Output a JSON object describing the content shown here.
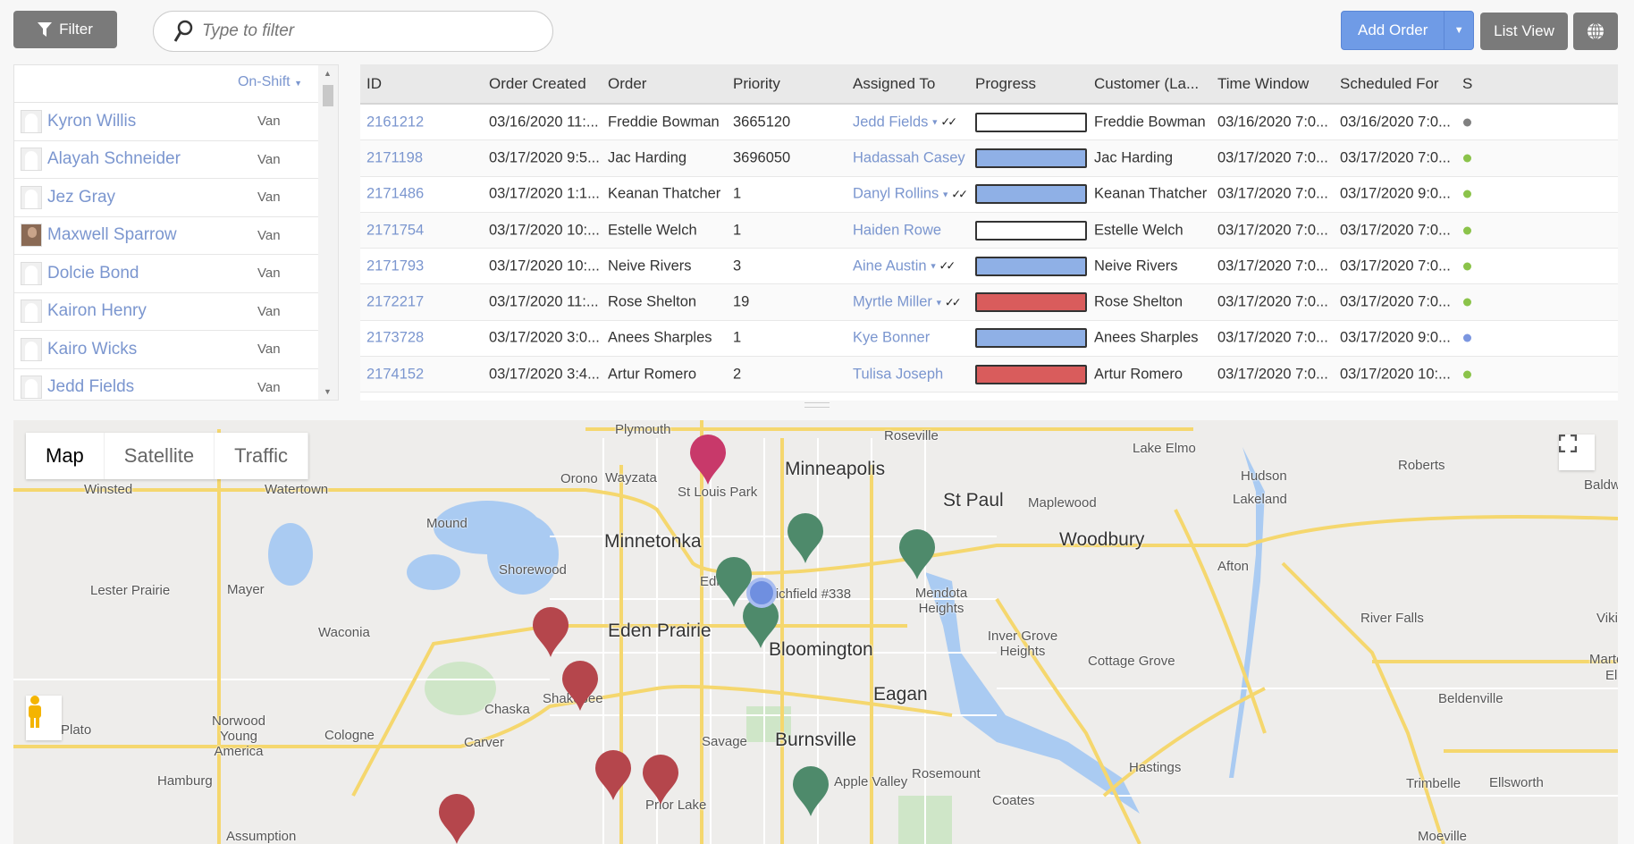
{
  "toolbar": {
    "filter_label": "Filter",
    "search_placeholder": "Type to filter",
    "add_order_label": "Add Order",
    "list_view_label": "List View"
  },
  "drivers": {
    "sort_label": "On-Shift",
    "items": [
      {
        "name": "Kyron Willis",
        "vehicle": "Van",
        "photo": false
      },
      {
        "name": "Alayah Schneider",
        "vehicle": "Van",
        "photo": false
      },
      {
        "name": "Jez Gray",
        "vehicle": "Van",
        "photo": false
      },
      {
        "name": "Maxwell Sparrow",
        "vehicle": "Van",
        "photo": true
      },
      {
        "name": "Dolcie Bond",
        "vehicle": "Van",
        "photo": false
      },
      {
        "name": "Kairon Henry",
        "vehicle": "Van",
        "photo": false
      },
      {
        "name": "Kairo Wicks",
        "vehicle": "Van",
        "photo": false
      },
      {
        "name": "Jedd Fields",
        "vehicle": "Van",
        "photo": false
      }
    ]
  },
  "orders": {
    "columns": [
      "ID",
      "Order Created",
      "Order",
      "Priority",
      "Assigned To",
      "Progress",
      "Customer (La...",
      "Time Window",
      "Scheduled For",
      "S"
    ],
    "rows": [
      {
        "id": "2161212",
        "created": "03/16/2020 11:...",
        "order": "Freddie Bowman",
        "priority": "3665120",
        "assigned": "Jedd Fields",
        "confirmed": true,
        "progress": "none",
        "customer": "Freddie Bowman",
        "window": "03/16/2020 7:0...",
        "scheduled": "03/16/2020 7:0...",
        "status": "gray"
      },
      {
        "id": "2171198",
        "created": "03/17/2020 9:5...",
        "order": "Jac Harding",
        "priority": "3696050",
        "assigned": "Hadassah Casey",
        "confirmed": false,
        "progress": "blue",
        "customer": "Jac Harding",
        "window": "03/17/2020 7:0...",
        "scheduled": "03/17/2020 7:0...",
        "status": "green"
      },
      {
        "id": "2171486",
        "created": "03/17/2020 1:1...",
        "order": "Keanan Thatcher",
        "priority": "1",
        "assigned": "Danyl Rollins",
        "confirmed": true,
        "progress": "blue",
        "customer": "Keanan Thatcher",
        "window": "03/17/2020 7:0...",
        "scheduled": "03/17/2020 9:0...",
        "status": "green"
      },
      {
        "id": "2171754",
        "created": "03/17/2020 10:...",
        "order": "Estelle Welch",
        "priority": "1",
        "assigned": "Haiden Rowe",
        "confirmed": false,
        "progress": "none",
        "customer": "Estelle Welch",
        "window": "03/17/2020 7:0...",
        "scheduled": "03/17/2020 7:0...",
        "status": "green"
      },
      {
        "id": "2171793",
        "created": "03/17/2020 10:...",
        "order": "Neive Rivers",
        "priority": "3",
        "assigned": "Aine Austin",
        "confirmed": true,
        "progress": "blue",
        "customer": "Neive Rivers",
        "window": "03/17/2020 7:0...",
        "scheduled": "03/17/2020 7:0...",
        "status": "green"
      },
      {
        "id": "2172217",
        "created": "03/17/2020 11:...",
        "order": "Rose Shelton",
        "priority": "19",
        "assigned": "Myrtle Miller",
        "confirmed": true,
        "progress": "red",
        "customer": "Rose Shelton",
        "window": "03/17/2020 7:0...",
        "scheduled": "03/17/2020 7:0...",
        "status": "green"
      },
      {
        "id": "2173728",
        "created": "03/17/2020 3:0...",
        "order": "Anees Sharples",
        "priority": "1",
        "assigned": "Kye Bonner",
        "confirmed": false,
        "progress": "blue",
        "customer": "Anees Sharples",
        "window": "03/17/2020 7:0...",
        "scheduled": "03/17/2020 9:0...",
        "status": "blue"
      },
      {
        "id": "2174152",
        "created": "03/17/2020 3:4...",
        "order": "Artur Romero",
        "priority": "2",
        "assigned": "Tulisa Joseph",
        "confirmed": false,
        "progress": "red",
        "customer": "Artur Romero",
        "window": "03/17/2020 7:0...",
        "scheduled": "03/17/2020 10:...",
        "status": "green"
      }
    ]
  },
  "colors": {
    "progress": {
      "none": "#ffffff",
      "blue": "#8fb0e6",
      "red": "#d95c5c"
    },
    "status": {
      "gray": "#808080",
      "green": "#8bc34a",
      "blue": "#7b96e0"
    },
    "marker": {
      "crimson": "#c8396a",
      "green": "#4e8a6b",
      "red": "#b5464c"
    }
  },
  "map": {
    "types": [
      "Map",
      "Satellite",
      "Traffic"
    ],
    "active_type": "Map",
    "labels": [
      "Plymouth",
      "Minneapolis",
      "St Louis Park",
      "Roseville",
      "Lake Elmo",
      "Roberts",
      "Baldwin",
      "Hudson",
      "Lakeland",
      "St Paul",
      "Maplewood",
      "Woodbury",
      "Winsted",
      "Watertown",
      "Orono",
      "Wayzata",
      "Mound",
      "Minnetonka",
      "Shorewood",
      "Lester Prairie",
      "Mayer",
      "Waconia",
      "Eden Prairie",
      "Edina",
      "Richfield #338",
      "Bloomington",
      "Mendota Heights",
      "Inver Grove Heights",
      "Afton",
      "River Falls",
      "Viking",
      "Cottage Grove",
      "Martell",
      "Eagan",
      "Chaska",
      "Shakopee",
      "Plato",
      "Norwood Young America",
      "Cologne",
      "Carver",
      "Savage",
      "Burnsville",
      "Beldenville",
      "El Pa",
      "Rosemount",
      "Hastings",
      "Trimbelle",
      "Ellsworth",
      "Hamburg",
      "Prior Lake",
      "Apple Valley",
      "Coates",
      "Assumption",
      "Moeville"
    ],
    "markers": [
      "crimson",
      "green",
      "green",
      "green",
      "green",
      "green",
      "red",
      "red",
      "red",
      "red",
      "red"
    ]
  }
}
